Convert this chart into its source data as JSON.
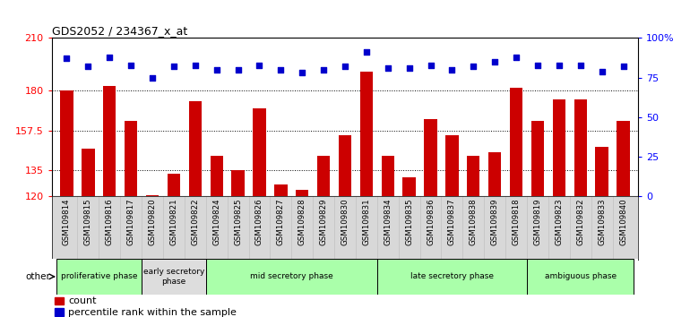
{
  "title": "GDS2052 / 234367_x_at",
  "samples": [
    "GSM109814",
    "GSM109815",
    "GSM109816",
    "GSM109817",
    "GSM109820",
    "GSM109821",
    "GSM109822",
    "GSM109824",
    "GSM109825",
    "GSM109826",
    "GSM109827",
    "GSM109828",
    "GSM109829",
    "GSM109830",
    "GSM109831",
    "GSM109834",
    "GSM109835",
    "GSM109836",
    "GSM109837",
    "GSM109838",
    "GSM109839",
    "GSM109818",
    "GSM109819",
    "GSM109823",
    "GSM109832",
    "GSM109833",
    "GSM109840"
  ],
  "counts": [
    180,
    147,
    183,
    163,
    121,
    133,
    174,
    143,
    135,
    170,
    127,
    124,
    143,
    155,
    191,
    143,
    131,
    164,
    155,
    143,
    145,
    182,
    163,
    175,
    175,
    148,
    163
  ],
  "percentiles": [
    87,
    82,
    88,
    83,
    75,
    82,
    83,
    80,
    80,
    83,
    80,
    78,
    80,
    82,
    91,
    81,
    81,
    83,
    80,
    82,
    85,
    88,
    83,
    83,
    83,
    79,
    82
  ],
  "bar_color": "#cc0000",
  "dot_color": "#0000cc",
  "ylim_left": [
    120,
    210
  ],
  "ylim_right": [
    0,
    100
  ],
  "yticks_left": [
    120,
    135,
    157.5,
    180,
    210
  ],
  "yticks_right": [
    0,
    25,
    50,
    75,
    100
  ],
  "ytick_labels_left": [
    "120",
    "135",
    "157.5",
    "180",
    "210"
  ],
  "ytick_labels_right": [
    "0",
    "25",
    "50",
    "75",
    "100%"
  ],
  "phases": [
    {
      "label": "proliferative phase",
      "start": 0,
      "end": 3,
      "color": "#aaffaa"
    },
    {
      "label": "early secretory\nphase",
      "start": 4,
      "end": 6,
      "color": "#dddddd"
    },
    {
      "label": "mid secretory phase",
      "start": 7,
      "end": 14,
      "color": "#aaffaa"
    },
    {
      "label": "late secretory phase",
      "start": 15,
      "end": 21,
      "color": "#aaffaa"
    },
    {
      "label": "ambiguous phase",
      "start": 22,
      "end": 26,
      "color": "#aaffaa"
    }
  ],
  "other_label": "other",
  "legend_count_label": "count",
  "legend_pct_label": "percentile rank within the sample"
}
